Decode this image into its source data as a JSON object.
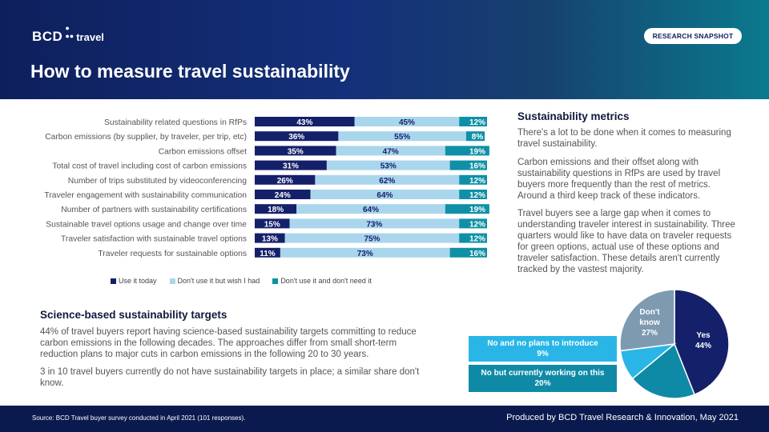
{
  "header": {
    "logo_mark": "BCD",
    "logo_word": "travel",
    "badge": "RESEARCH SNAPSHOT",
    "title": "How to measure travel sustainability"
  },
  "colors": {
    "use_today": "#15206a",
    "wish": "#a9d6ec",
    "dont_need": "#0f90a6",
    "pie_no_plans": "#29b6e6",
    "pie_working": "#0f8aa6",
    "pie_dont_know": "#7d9ab1",
    "pie_yes": "#15206a"
  },
  "chart_data": [
    {
      "type": "bar",
      "orientation": "horizontal",
      "stacked": true,
      "categories": [
        "Sustainability related questions in RfPs",
        "Carbon emissions (by supplier, by traveler, per trip, etc)",
        "Carbon emissions offset",
        "Total cost of travel  including cost of carbon emissions",
        "Number of trips substituted by videoconferencing",
        "Traveler engagement with sustainability communication",
        "Number of partners with sustainability certifications",
        "Sustainable travel options usage and change over time",
        "Traveler satisfaction with sustainable travel options",
        "Traveler requests for sustainable options"
      ],
      "series": [
        {
          "name": "Use it today",
          "values": [
            43,
            36,
            35,
            31,
            26,
            24,
            18,
            15,
            13,
            11
          ]
        },
        {
          "name": "Don't use it but wish I had",
          "values": [
            45,
            55,
            47,
            53,
            62,
            64,
            64,
            73,
            75,
            73
          ]
        },
        {
          "name": "Don't use it and don't need it",
          "values": [
            12,
            8,
            19,
            16,
            12,
            12,
            19,
            12,
            12,
            16
          ]
        }
      ],
      "xlim": [
        0,
        100
      ],
      "unit": "%"
    },
    {
      "type": "pie",
      "slices": [
        {
          "label": "Yes",
          "value": 44
        },
        {
          "label": "No  but currently working on this",
          "value": 20
        },
        {
          "label": "No  and no plans to introduce",
          "value": 9
        },
        {
          "label": "Don't know",
          "value": 27
        }
      ],
      "unit": "%"
    }
  ],
  "pie_labels": {
    "yes_label": "Yes",
    "yes_value": "44%",
    "dk_line1": "Don't",
    "dk_line2": "know",
    "dk_value": "27%",
    "no_plans_label": "No  and no plans to introduce",
    "no_plans_value": "9%",
    "working_label": "No  but currently working on this",
    "working_value": "20%"
  },
  "metrics": {
    "heading": "Sustainability metrics",
    "p1": "There's a lot to be done when it comes to measuring travel sustainability.",
    "p2": "Carbon emissions and their offset along with sustainability questions in RfPs are used by travel buyers more frequently than the rest of metrics. Around a third keep track of these indicators.",
    "p3": "Travel buyers see a large gap when it comes to understanding traveler interest in sustainability. Three quarters would like to have data on traveler requests for green options, actual use of these options and traveler satisfaction. These details aren't currently tracked by the vastest majority."
  },
  "targets": {
    "heading": "Science-based sustainability targets",
    "p1": "44% of travel buyers report having science-based sustainability targets committing to reduce carbon emissions in the following decades. The approaches differ from small short-term reduction plans to major cuts in carbon emissions in the following 20 to 30 years.",
    "p2": "3 in 10 travel buyers currently do not have sustainability targets in place; a similar share don't know."
  },
  "footer": {
    "source": "Source: BCD Travel buyer survey conducted in April 2021 (101 responses).",
    "produced": "Produced by BCD Travel Research & Innovation, May 2021"
  }
}
